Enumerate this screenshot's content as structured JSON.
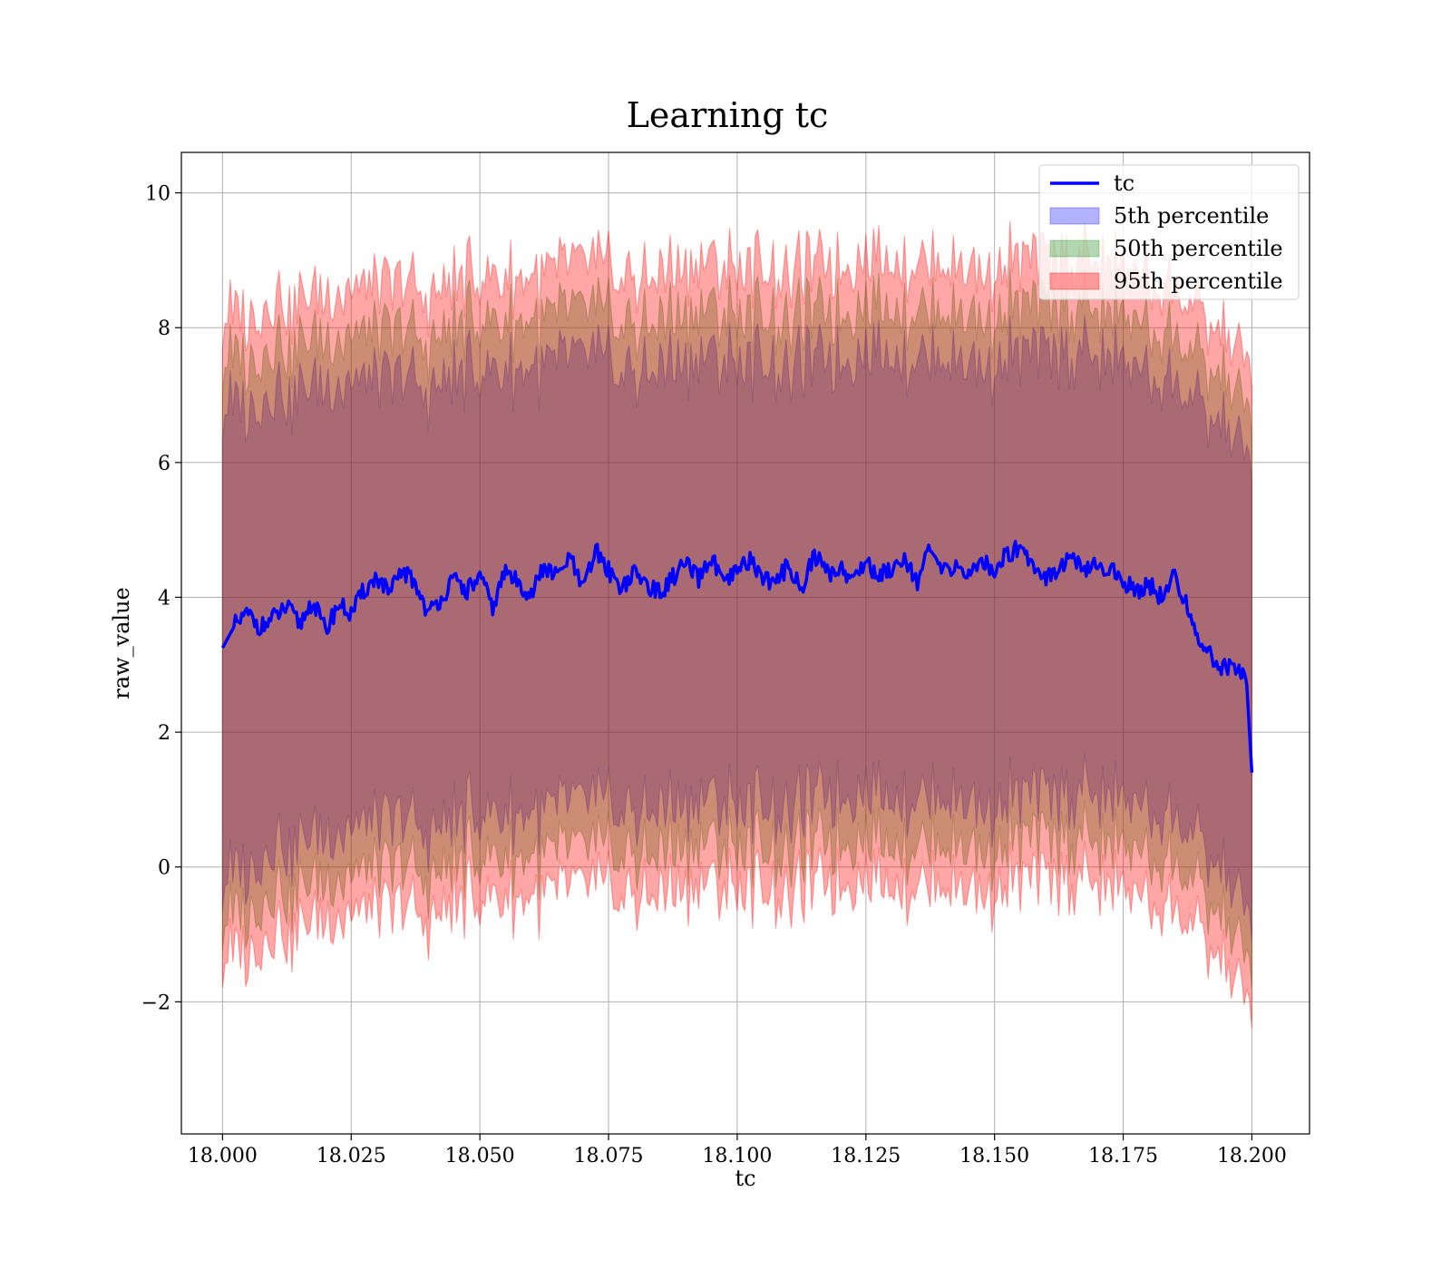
{
  "chart_data": {
    "type": "area",
    "title": "Learning tc",
    "xlabel": "tc",
    "ylabel": "raw_value",
    "xlim": [
      17.992,
      18.2112
    ],
    "ylim": [
      -3.96,
      10.6
    ],
    "x_ticks": [
      18.0,
      18.025,
      18.05,
      18.075,
      18.1,
      18.125,
      18.15,
      18.175,
      18.2
    ],
    "x_tick_labels": [
      "18.000",
      "18.025",
      "18.050",
      "18.075",
      "18.100",
      "18.125",
      "18.150",
      "18.175",
      "18.200"
    ],
    "y_ticks": [
      -2,
      0,
      2,
      4,
      6,
      8,
      10
    ],
    "y_tick_labels": [
      "−2",
      "0",
      "2",
      "4",
      "6",
      "8",
      "10"
    ],
    "grid": true,
    "legend_position": "top-right",
    "line_series": {
      "name": "tc",
      "color": "#0000ff",
      "x": [
        18.0,
        18.0025,
        18.005,
        18.0075,
        18.01,
        18.0125,
        18.015,
        18.0175,
        18.02,
        18.0225,
        18.025,
        18.0275,
        18.03,
        18.0325,
        18.035,
        18.0375,
        18.04,
        18.0425,
        18.045,
        18.0475,
        18.05,
        18.0525,
        18.055,
        18.0575,
        18.06,
        18.0625,
        18.065,
        18.0675,
        18.07,
        18.0725,
        18.075,
        18.0775,
        18.08,
        18.0825,
        18.085,
        18.0875,
        18.09,
        18.0925,
        18.095,
        18.0975,
        18.1,
        18.1025,
        18.105,
        18.1075,
        18.11,
        18.1125,
        18.115,
        18.1175,
        18.12,
        18.1225,
        18.125,
        18.1275,
        18.13,
        18.1325,
        18.135,
        18.1375,
        18.14,
        18.1425,
        18.145,
        18.1475,
        18.15,
        18.1525,
        18.155,
        18.1575,
        18.16,
        18.1625,
        18.165,
        18.1675,
        18.17,
        18.1725,
        18.175,
        18.1775,
        18.18,
        18.1825,
        18.185,
        18.1875,
        18.19,
        18.1925,
        18.195,
        18.1975,
        18.199,
        18.2
      ],
      "y": [
        3.25,
        3.6,
        3.75,
        3.55,
        3.7,
        3.85,
        3.6,
        3.95,
        3.5,
        3.9,
        3.75,
        4.1,
        4.3,
        4.05,
        4.4,
        4.2,
        3.75,
        4.0,
        4.25,
        4.1,
        4.3,
        3.85,
        4.4,
        4.2,
        4.05,
        4.45,
        4.3,
        4.6,
        4.1,
        4.7,
        4.4,
        4.15,
        4.35,
        4.2,
        4.05,
        4.3,
        4.5,
        4.25,
        4.6,
        4.15,
        4.4,
        4.55,
        4.3,
        4.2,
        4.5,
        4.1,
        4.65,
        4.35,
        4.45,
        4.25,
        4.55,
        4.3,
        4.45,
        4.6,
        4.25,
        4.7,
        4.35,
        4.5,
        4.3,
        4.55,
        4.4,
        4.65,
        4.75,
        4.5,
        4.3,
        4.45,
        4.6,
        4.35,
        4.5,
        4.4,
        4.25,
        4.1,
        4.2,
        4.0,
        4.3,
        3.85,
        3.35,
        3.05,
        2.95,
        3.0,
        2.7,
        1.4
      ]
    },
    "band_series": [
      {
        "name": "5th percentile",
        "color": "#0000ff",
        "alpha": 0.3,
        "x": [
          18.0,
          18.01,
          18.02,
          18.03,
          18.04,
          18.05,
          18.06,
          18.07,
          18.08,
          18.09,
          18.1,
          18.11,
          18.12,
          18.13,
          18.14,
          18.15,
          18.16,
          18.17,
          18.18,
          18.19,
          18.195,
          18.2
        ],
        "lower": [
          -0.25,
          0.3,
          0.4,
          0.75,
          0.55,
          0.85,
          0.75,
          1.05,
          0.8,
          0.9,
          0.95,
          0.85,
          1.15,
          1.1,
          1.05,
          0.95,
          1.15,
          1.05,
          0.9,
          0.35,
          -0.2,
          -0.9
        ],
        "upper": [
          6.75,
          7.0,
          7.05,
          7.3,
          7.1,
          7.4,
          7.35,
          7.65,
          7.3,
          7.45,
          7.5,
          7.4,
          7.6,
          7.65,
          7.55,
          7.5,
          7.7,
          7.55,
          7.35,
          6.8,
          6.45,
          5.9
        ]
      },
      {
        "name": "50th percentile",
        "color": "#008000",
        "alpha": 0.3,
        "x": [
          18.0,
          18.01,
          18.02,
          18.03,
          18.04,
          18.05,
          18.06,
          18.07,
          18.08,
          18.09,
          18.1,
          18.11,
          18.12,
          18.13,
          18.14,
          18.15,
          18.16,
          18.17,
          18.18,
          18.19,
          18.195,
          18.2
        ],
        "lower": [
          -0.85,
          -0.4,
          -0.3,
          0.05,
          -0.15,
          0.2,
          0.1,
          0.35,
          0.15,
          0.25,
          0.3,
          0.2,
          0.45,
          0.4,
          0.35,
          0.3,
          0.5,
          0.35,
          0.2,
          -0.35,
          -0.9,
          -1.6
        ],
        "upper": [
          7.45,
          7.7,
          7.75,
          8.0,
          7.8,
          8.15,
          8.05,
          8.35,
          8.0,
          8.15,
          8.2,
          8.1,
          8.3,
          8.35,
          8.25,
          8.2,
          8.4,
          8.25,
          8.05,
          7.5,
          7.15,
          6.6
        ]
      },
      {
        "name": "95th percentile",
        "color": "#ff0000",
        "alpha": 0.35,
        "x": [
          18.0,
          18.01,
          18.02,
          18.03,
          18.04,
          18.05,
          18.06,
          18.07,
          18.08,
          18.09,
          18.1,
          18.11,
          18.12,
          18.13,
          18.14,
          18.15,
          18.16,
          18.17,
          18.18,
          18.19,
          18.195,
          18.2
        ],
        "lower": [
          -1.4,
          -1.0,
          -0.85,
          -0.55,
          -0.75,
          -0.4,
          -0.5,
          -0.2,
          -0.45,
          -0.35,
          -0.3,
          -0.4,
          -0.15,
          -0.2,
          -0.25,
          -0.3,
          -0.1,
          -0.25,
          -0.45,
          -1.0,
          -1.55,
          -2.2
        ],
        "upper": [
          8.1,
          8.35,
          8.4,
          8.7,
          8.5,
          8.8,
          8.7,
          9.05,
          8.7,
          8.85,
          8.9,
          8.8,
          9.0,
          9.05,
          8.95,
          8.9,
          9.1,
          8.95,
          8.75,
          8.2,
          7.8,
          7.3
        ]
      }
    ],
    "legend": [
      "tc",
      "5th percentile",
      "50th percentile",
      "95th percentile"
    ]
  }
}
